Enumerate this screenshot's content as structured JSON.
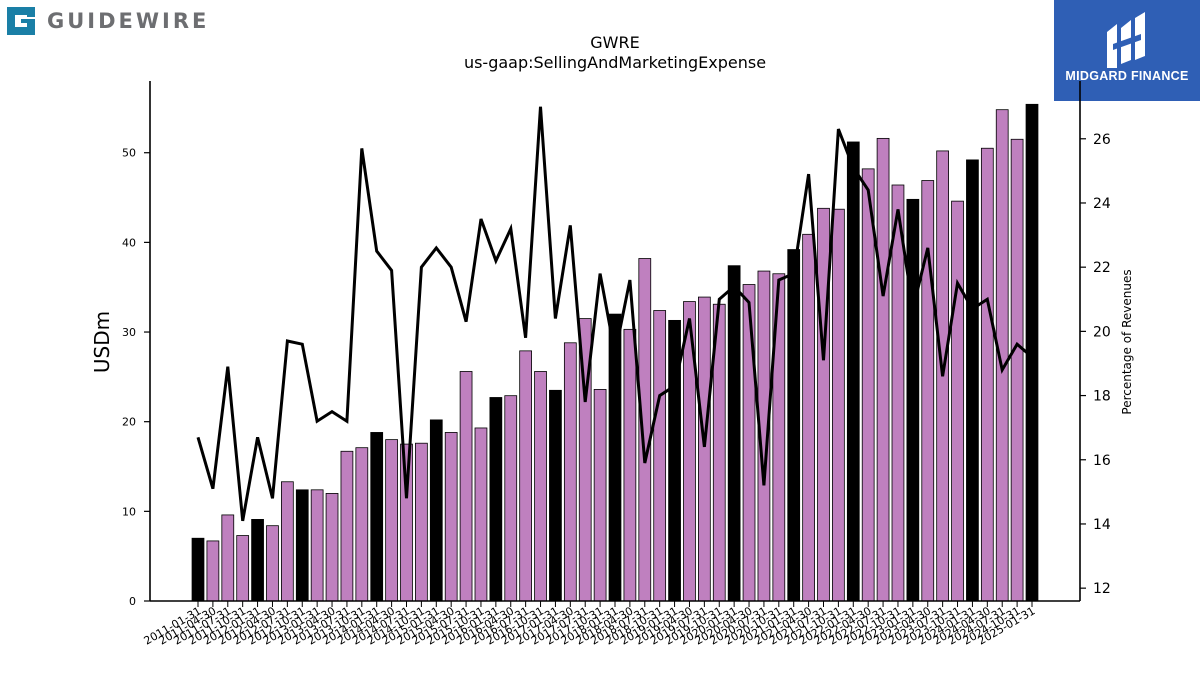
{
  "header": {
    "company_logo_text": "GUIDEWIRE",
    "brand_text": "MIDGARD FINANCE",
    "brand_color": "#2f5fb5",
    "logo_color": "#1a7fa6"
  },
  "chart_data": {
    "type": "bar",
    "title": "GWRE",
    "subtitle": "us-gaap:SellingAndMarketingExpense",
    "ylabel": "USDm",
    "y2label": "Percentage of Revenues",
    "ylim": [
      0,
      58
    ],
    "y2lim": [
      11.6,
      27.8
    ],
    "yticks": [
      0,
      10,
      20,
      30,
      40,
      50
    ],
    "y2ticks": [
      12,
      14,
      16,
      18,
      20,
      22,
      24,
      26
    ],
    "grid": false,
    "bar_colors": {
      "fiscal_year_end": "#000000",
      "quarter": "#bf80bf"
    },
    "categories": [
      "2011-01-31",
      "2011-04-30",
      "2011-07-31",
      "2011-10-31",
      "2012-01-31",
      "2012-04-30",
      "2012-07-31",
      "2012-10-31",
      "2013-01-31",
      "2013-04-30",
      "2013-07-31",
      "2013-10-31",
      "2014-01-31",
      "2014-04-30",
      "2014-07-31",
      "2014-10-31",
      "2015-01-31",
      "2015-04-30",
      "2015-07-31",
      "2015-10-31",
      "2016-01-31",
      "2016-04-30",
      "2016-07-31",
      "2016-10-31",
      "2017-01-31",
      "2017-04-30",
      "2017-07-31",
      "2017-10-31",
      "2018-01-31",
      "2018-04-30",
      "2018-07-31",
      "2018-10-31",
      "2019-01-31",
      "2019-04-30",
      "2019-07-31",
      "2019-10-31",
      "2020-01-31",
      "2020-04-30",
      "2020-07-31",
      "2020-10-31",
      "2021-01-31",
      "2021-04-30",
      "2021-07-31",
      "2021-10-31",
      "2022-01-31",
      "2022-04-30",
      "2022-07-31",
      "2022-10-31",
      "2023-01-31",
      "2023-04-30",
      "2023-07-31",
      "2023-10-31",
      "2024-01-31",
      "2024-04-30",
      "2024-07-31",
      "2024-10-31",
      "2025-01-31"
    ],
    "xtick_labels": [
      "2011-01-31",
      "2011-04-30",
      "2011-07-31",
      "2011-10-31",
      "2012-01-31",
      "2012-04-30",
      "2012-07-31",
      "2012-10-31",
      "2013-01-31",
      "2013-04-30",
      "2013-07-31",
      "2013-10-31",
      "2014-01-31",
      "2014-04-30",
      "2014-07-31",
      "2014-10-31",
      "2015-01-31",
      "2015-04-30",
      "2015-07-31",
      "2015-10-31",
      "2016-01-31",
      "2016-04-30",
      "2016-07-31",
      "2016-10-31",
      "2017-01-31",
      "2017-04-30",
      "2017-07-31",
      "2017-10-31",
      "2018-01-31",
      "2018-04-30",
      "2018-07-31",
      "2018-10-31",
      "2019-01-31",
      "2019-04-30",
      "2019-07-31",
      "2019-10-31",
      "2020-01-31",
      "2020-04-30",
      "2020-07-31",
      "2020-10-31",
      "2021-01-31",
      "2021-04-30",
      "2021-07-31",
      "2021-10-31",
      "2022-01-31",
      "2022-04-30",
      "2022-07-31",
      "2022-10-31",
      "2023-01-31",
      "2023-04-30",
      "2023-07-31",
      "2023-10-31",
      "2024-01-31",
      "2024-04-30",
      "2024-07-31",
      "2024-10-31",
      "2025-01-31"
    ],
    "series": [
      {
        "name": "SellingAndMarketingExpense",
        "type": "bar",
        "axis": "left",
        "values": [
          7.0,
          6.7,
          9.6,
          7.3,
          9.1,
          8.4,
          13.3,
          12.4,
          12.4,
          12.0,
          16.7,
          17.1,
          18.8,
          18.0,
          17.5,
          17.6,
          20.2,
          18.8,
          25.6,
          19.3,
          22.7,
          22.9,
          27.9,
          25.6,
          23.5,
          28.8,
          31.5,
          23.6,
          32.0,
          30.3,
          38.2,
          32.4,
          31.3,
          33.4,
          33.9,
          33.1,
          37.4,
          35.3,
          36.8,
          36.5,
          39.2,
          40.9,
          43.8,
          43.7,
          51.2,
          48.2,
          51.6,
          46.4,
          44.8,
          46.9,
          50.2,
          44.6,
          49.2,
          50.5,
          54.8,
          51.5,
          55.4
        ],
        "is_fiscal_year_end": [
          true,
          false,
          false,
          false,
          true,
          false,
          false,
          true,
          false,
          false,
          false,
          false,
          true,
          false,
          false,
          false,
          true,
          false,
          false,
          false,
          true,
          false,
          false,
          false,
          true,
          false,
          false,
          false,
          true,
          false,
          false,
          false,
          true,
          false,
          false,
          false,
          true,
          false,
          false,
          false,
          true,
          false,
          false,
          false,
          true,
          false,
          false,
          false,
          true,
          false,
          false,
          false,
          true,
          false,
          false,
          false,
          true
        ]
      },
      {
        "name": "Percentage of Revenues",
        "type": "line",
        "axis": "right",
        "color": "#000000",
        "values": [
          16.7,
          15.1,
          18.9,
          14.1,
          16.7,
          14.8,
          19.7,
          19.6,
          17.2,
          17.5,
          17.2,
          25.7,
          22.5,
          21.9,
          14.8,
          22.0,
          22.6,
          22.0,
          20.3,
          23.5,
          22.2,
          23.2,
          19.8,
          27.0,
          20.4,
          23.3,
          17.8,
          21.8,
          19.3,
          21.6,
          15.9,
          18.0,
          18.3,
          20.4,
          16.4,
          21.0,
          21.4,
          20.9,
          15.2,
          21.6,
          21.8,
          24.9,
          19.1,
          26.3,
          25.1,
          24.4,
          21.1,
          23.8,
          20.7,
          22.6,
          18.6,
          21.5,
          20.7,
          21.0,
          18.8,
          19.6,
          19.2
        ]
      }
    ]
  }
}
